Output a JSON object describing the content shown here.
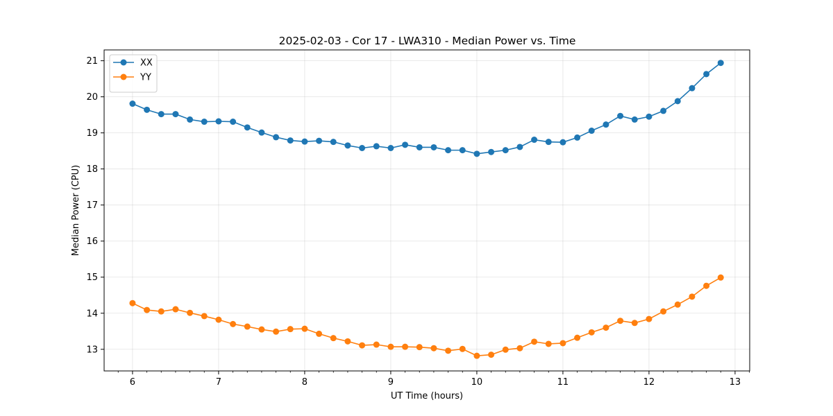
{
  "chart_data": {
    "type": "line",
    "title": "2025-02-03 - Cor 17 - LWA310 - Median Power vs. Time",
    "xlabel": "UT Time (hours)",
    "ylabel": "Median Power (CPU)",
    "xlim": [
      5.67,
      13.17
    ],
    "ylim": [
      12.4,
      21.3
    ],
    "xticks": [
      6,
      7,
      8,
      9,
      10,
      11,
      12,
      13
    ],
    "yticks": [
      13,
      14,
      15,
      16,
      17,
      18,
      19,
      20,
      21
    ],
    "grid": true,
    "legend_position": "upper-left",
    "x": [
      6.0,
      6.1667,
      6.3333,
      6.5,
      6.6667,
      6.8333,
      7.0,
      7.1667,
      7.3333,
      7.5,
      7.6667,
      7.8333,
      8.0,
      8.1667,
      8.3333,
      8.5,
      8.6667,
      8.8333,
      9.0,
      9.1667,
      9.3333,
      9.5,
      9.6667,
      9.8333,
      10.0,
      10.1667,
      10.3333,
      10.5,
      10.6667,
      10.8333,
      11.0,
      11.1667,
      11.3333,
      11.5,
      11.6667,
      11.8333,
      12.0,
      12.1667,
      12.3333,
      12.5,
      12.6667,
      12.8333
    ],
    "series": [
      {
        "name": "XX",
        "color": "#1f77b4",
        "values": [
          19.81,
          19.64,
          19.52,
          19.52,
          19.37,
          19.31,
          19.32,
          19.31,
          19.15,
          19.01,
          18.88,
          18.79,
          18.76,
          18.78,
          18.75,
          18.65,
          18.58,
          18.63,
          18.58,
          18.67,
          18.6,
          18.6,
          18.52,
          18.52,
          18.42,
          18.47,
          18.52,
          18.61,
          18.81,
          18.75,
          18.74,
          18.87,
          19.06,
          19.23,
          19.47,
          19.37,
          19.45,
          19.61,
          19.88,
          20.24,
          20.63,
          20.94
        ]
      },
      {
        "name": "YY",
        "color": "#ff7f0e",
        "values": [
          14.28,
          14.09,
          14.05,
          14.11,
          14.01,
          13.92,
          13.82,
          13.7,
          13.63,
          13.55,
          13.49,
          13.56,
          13.57,
          13.43,
          13.31,
          13.22,
          13.11,
          13.13,
          13.07,
          13.07,
          13.06,
          13.03,
          12.96,
          13.01,
          12.82,
          12.85,
          12.99,
          13.03,
          13.21,
          13.15,
          13.17,
          13.32,
          13.47,
          13.6,
          13.79,
          13.73,
          13.84,
          14.05,
          14.24,
          14.46,
          14.76,
          14.99
        ]
      }
    ]
  }
}
